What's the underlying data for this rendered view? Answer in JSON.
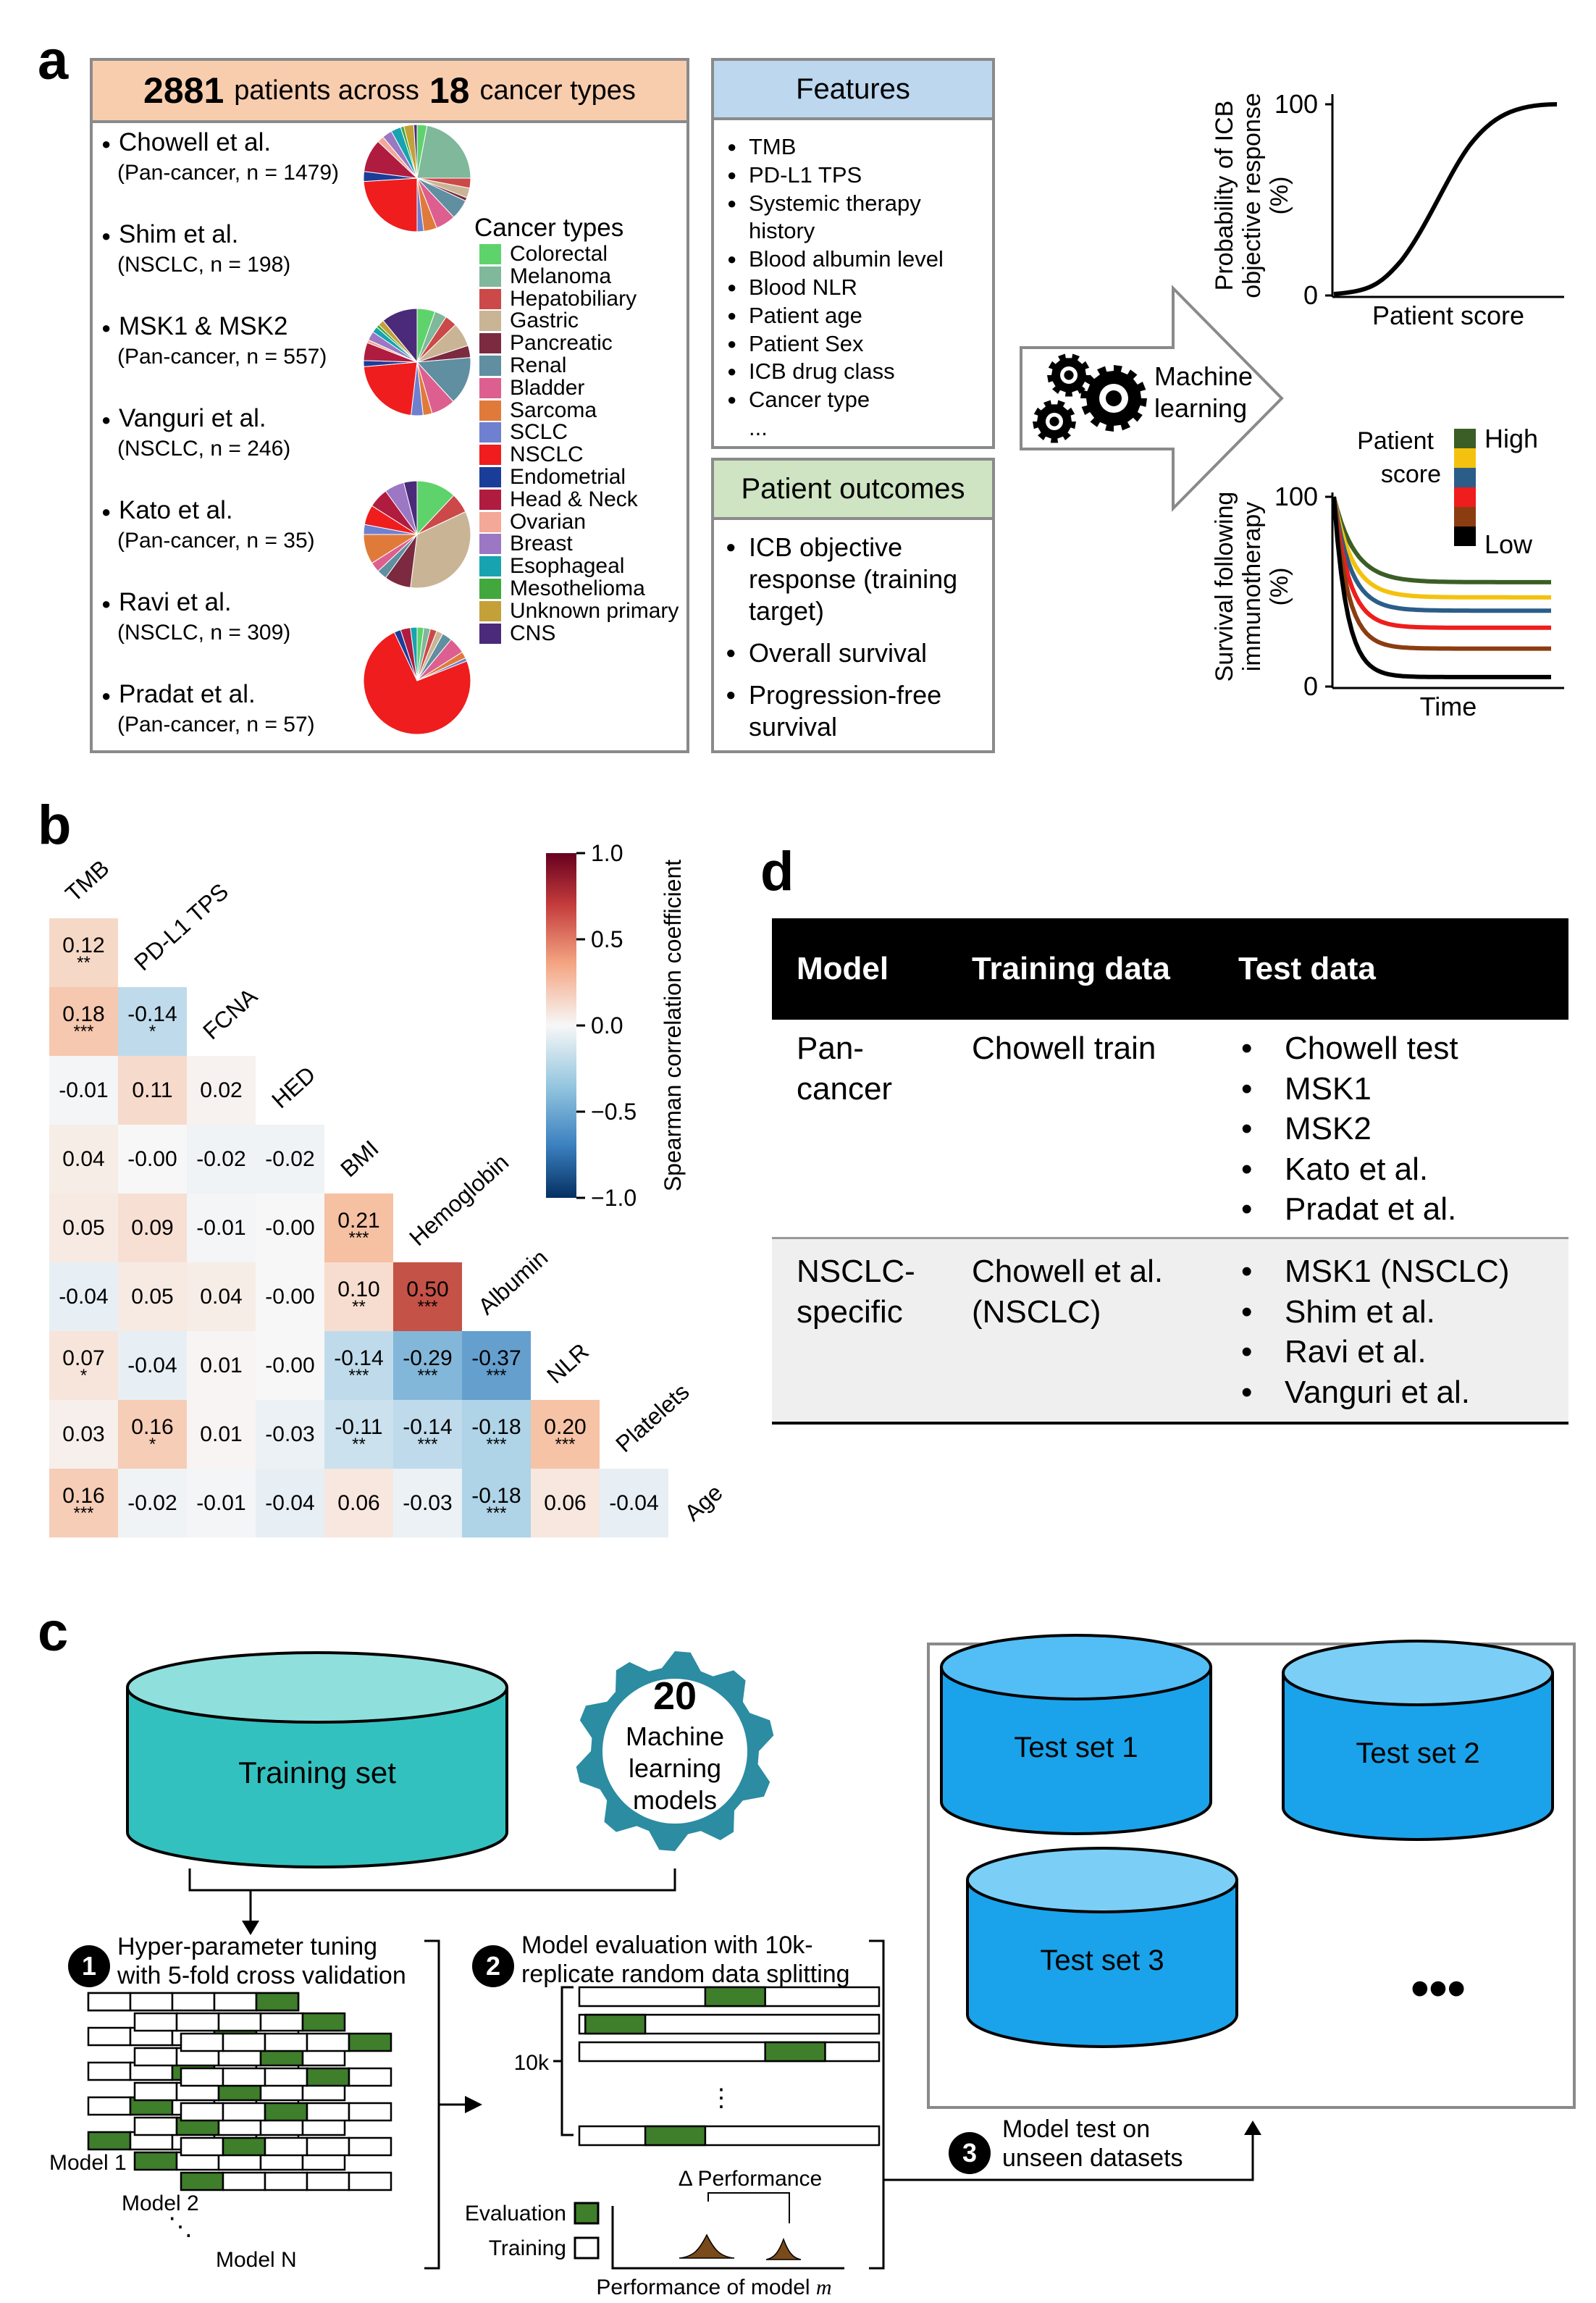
{
  "panel_a": {
    "letter": "a",
    "header": {
      "patients_num": "2881",
      "patients_mid": "patients across",
      "types_num": "18",
      "types_tail": "cancer types"
    },
    "studies": [
      {
        "name": "Chowell et al.",
        "detail": "(Pan-cancer, n = 1479)"
      },
      {
        "name": "Shim et al.",
        "detail": "(NSCLC, n = 198)"
      },
      {
        "name": "MSK1 & MSK2",
        "detail": "(Pan-cancer, n = 557)"
      },
      {
        "name": "Vanguri et al.",
        "detail": "(NSCLC, n = 246)"
      },
      {
        "name": "Kato et al.",
        "detail": "(Pan-cancer, n = 35)"
      },
      {
        "name": "Ravi et al.",
        "detail": "(NSCLC, n = 309)"
      },
      {
        "name": "Pradat et al.",
        "detail": "(Pan-cancer, n = 57)"
      }
    ],
    "legend_title": "Cancer types",
    "cancer_types": [
      {
        "label": "Colorectal",
        "color": "#5fd36b"
      },
      {
        "label": "Melanoma",
        "color": "#7fb89a"
      },
      {
        "label": "Hepatobiliary",
        "color": "#cc4949"
      },
      {
        "label": "Gastric",
        "color": "#c9b596"
      },
      {
        "label": "Pancreatic",
        "color": "#7b2a3f"
      },
      {
        "label": "Renal",
        "color": "#5f8fa0"
      },
      {
        "label": "Bladder",
        "color": "#dd5f8f"
      },
      {
        "label": "Sarcoma",
        "color": "#e07a3b"
      },
      {
        "label": "SCLC",
        "color": "#6e80cf"
      },
      {
        "label": "NSCLC",
        "color": "#ef1d1d"
      },
      {
        "label": "Endometrial",
        "color": "#1b3d9a"
      },
      {
        "label": "Head & Neck",
        "color": "#b01c3f"
      },
      {
        "label": "Ovarian",
        "color": "#f3a898"
      },
      {
        "label": "Breast",
        "color": "#9b77c4"
      },
      {
        "label": "Esophageal",
        "color": "#17a3b0"
      },
      {
        "label": "Mesothelioma",
        "color": "#42a83d"
      },
      {
        "label": "Unknown primary",
        "color": "#c4a038"
      },
      {
        "label": "CNS",
        "color": "#4a2a79"
      }
    ],
    "pies": [
      {
        "slices": [
          [
            "#5fd36b",
            3
          ],
          [
            "#7fb89a",
            22
          ],
          [
            "#cc4949",
            3
          ],
          [
            "#c9b596",
            3
          ],
          [
            "#7b2a3f",
            1
          ],
          [
            "#5f8fa0",
            6
          ],
          [
            "#dd5f8f",
            6
          ],
          [
            "#e07a3b",
            4
          ],
          [
            "#6e80cf",
            2
          ],
          [
            "#ef1d1d",
            24
          ],
          [
            "#1b3d9a",
            3
          ],
          [
            "#b01c3f",
            10
          ],
          [
            "#f3a898",
            2
          ],
          [
            "#9b77c4",
            3
          ],
          [
            "#17a3b0",
            3
          ],
          [
            "#42a83d",
            1
          ],
          [
            "#c4a038",
            3
          ],
          [
            "#4a2a79",
            1
          ]
        ]
      },
      {
        "slices": [
          [
            "#5fd36b",
            6
          ],
          [
            "#7fb89a",
            4
          ],
          [
            "#cc4949",
            4
          ],
          [
            "#c9b596",
            8
          ],
          [
            "#7b2a3f",
            4
          ],
          [
            "#5f8fa0",
            16
          ],
          [
            "#dd5f8f",
            8
          ],
          [
            "#e07a3b",
            3
          ],
          [
            "#6e80cf",
            4
          ],
          [
            "#ef1d1d",
            24
          ],
          [
            "#1b3d9a",
            2
          ],
          [
            "#b01c3f",
            6
          ],
          [
            "#f3a898",
            1
          ],
          [
            "#9b77c4",
            3
          ],
          [
            "#17a3b0",
            2
          ],
          [
            "#42a83d",
            1
          ],
          [
            "#c4a038",
            2
          ],
          [
            "#4a2a79",
            12
          ]
        ]
      },
      {
        "slices": [
          [
            "#5fd36b",
            12
          ],
          [
            "#7fb89a",
            0
          ],
          [
            "#cc4949",
            6
          ],
          [
            "#c9b596",
            34
          ],
          [
            "#7b2a3f",
            8
          ],
          [
            "#5f8fa0",
            3
          ],
          [
            "#dd5f8f",
            3
          ],
          [
            "#e07a3b",
            9
          ],
          [
            "#6e80cf",
            3
          ],
          [
            "#ef1d1d",
            6
          ],
          [
            "#1b3d9a",
            0
          ],
          [
            "#b01c3f",
            6
          ],
          [
            "#f3a898",
            0
          ],
          [
            "#9b77c4",
            6
          ],
          [
            "#17a3b0",
            0
          ],
          [
            "#42a83d",
            0
          ],
          [
            "#c4a038",
            0
          ],
          [
            "#4a2a79",
            4
          ]
        ]
      },
      {
        "slices": [
          [
            "#5fd36b",
            2
          ],
          [
            "#7fb89a",
            2
          ],
          [
            "#cc4949",
            2
          ],
          [
            "#c9b596",
            2
          ],
          [
            "#7b2a3f",
            0
          ],
          [
            "#5f8fa0",
            3
          ],
          [
            "#dd5f8f",
            5
          ],
          [
            "#e07a3b",
            2
          ],
          [
            "#6e80cf",
            1
          ],
          [
            "#ef1d1d",
            74
          ],
          [
            "#1b3d9a",
            2
          ],
          [
            "#b01c3f",
            3
          ],
          [
            "#f3a898",
            0
          ],
          [
            "#9b77c4",
            0
          ],
          [
            "#17a3b0",
            2
          ],
          [
            "#42a83d",
            0
          ],
          [
            "#c4a038",
            0
          ],
          [
            "#4a2a79",
            0
          ]
        ]
      }
    ],
    "features_title": "Features",
    "features": [
      "TMB",
      "PD-L1 TPS",
      "Systemic therapy",
      "history",
      "Blood albumin level",
      "Blood NLR",
      "Patient age",
      "Patient Sex",
      "ICB drug class",
      "Cancer type",
      "..."
    ],
    "outcomes_title": "Patient outcomes",
    "outcomes": [
      {
        "l1": "ICB objective",
        "l2": "response (training",
        "l3": "target)"
      },
      {
        "l1": "Overall survival",
        "l2": "",
        "l3": ""
      },
      {
        "l1": "Progression-free",
        "l2": "survival",
        "l3": ""
      }
    ],
    "ml_label_1": "Machine",
    "ml_label_2": "learning",
    "resp_plot": {
      "ylabel1": "Probability of ICB",
      "ylabel2": "objective response",
      "ylabel3": "(%)",
      "ytick_top": "100",
      "ytick_bottom": "0",
      "xlabel": "Patient score"
    },
    "surv_plot": {
      "ylabel1": "Survival following",
      "ylabel2": "immunotherapy",
      "ylabel3": "(%)",
      "ytick_top": "100",
      "ytick_bottom": "0",
      "xlabel": "Time",
      "legend_title_1": "Patient",
      "legend_title_2": "score",
      "high": "High",
      "low": "Low",
      "colors": [
        "#3b5e25",
        "#f4c20e",
        "#2b5d88",
        "#ef1d1d",
        "#8b3d11",
        "#000000"
      ]
    }
  },
  "panel_b": {
    "letter": "b",
    "variables": [
      "TMB",
      "PD-L1 TPS",
      "FCNA",
      "HED",
      "BMI",
      "Hemoglobin",
      "Albumin",
      "NLR",
      "Platelets",
      "Age"
    ],
    "cells": [
      [
        [
          "0.12",
          "**"
        ]
      ],
      [
        [
          "0.18",
          "***"
        ],
        [
          "-0.14",
          "*"
        ]
      ],
      [
        [
          "-0.01",
          ""
        ],
        [
          "0.11",
          ""
        ],
        [
          "0.02",
          ""
        ]
      ],
      [
        [
          "0.04",
          ""
        ],
        [
          "-0.00",
          ""
        ],
        [
          "-0.02",
          ""
        ],
        [
          "-0.02",
          ""
        ]
      ],
      [
        [
          "0.05",
          ""
        ],
        [
          "0.09",
          ""
        ],
        [
          "-0.01",
          ""
        ],
        [
          "-0.00",
          ""
        ],
        [
          "0.21",
          "***"
        ]
      ],
      [
        [
          "-0.04",
          ""
        ],
        [
          "0.05",
          ""
        ],
        [
          "0.04",
          ""
        ],
        [
          "-0.00",
          ""
        ],
        [
          "0.10",
          "**"
        ],
        [
          "0.50",
          "***"
        ]
      ],
      [
        [
          "0.07",
          "*"
        ],
        [
          "-0.04",
          ""
        ],
        [
          "0.01",
          ""
        ],
        [
          "-0.00",
          ""
        ],
        [
          "-0.14",
          "***"
        ],
        [
          "-0.29",
          "***"
        ],
        [
          "-0.37",
          "***"
        ]
      ],
      [
        [
          "0.03",
          ""
        ],
        [
          "0.16",
          "*"
        ],
        [
          "0.01",
          ""
        ],
        [
          "-0.03",
          ""
        ],
        [
          "-0.11",
          "**"
        ],
        [
          "-0.14",
          "***"
        ],
        [
          "-0.18",
          "***"
        ],
        [
          "0.20",
          "***"
        ]
      ],
      [
        [
          "0.16",
          "***"
        ],
        [
          "-0.02",
          ""
        ],
        [
          "-0.01",
          ""
        ],
        [
          "-0.04",
          ""
        ],
        [
          "0.06",
          ""
        ],
        [
          "-0.03",
          ""
        ],
        [
          "-0.18",
          "***"
        ],
        [
          "0.06",
          ""
        ],
        [
          "-0.04",
          ""
        ]
      ]
    ],
    "colorbar": {
      "label": "Spearman correlation coefficient",
      "ticks": [
        "1.0",
        "0.5",
        "0.0",
        "−0.5",
        "−1.0"
      ]
    }
  },
  "panel_c": {
    "letter": "c",
    "training_set": "Training set",
    "gear_number": "20",
    "gear_l1": "Machine",
    "gear_l2": "learning",
    "gear_l3": "models",
    "test_sets": [
      "Test set 1",
      "Test set 2",
      "Test set 3"
    ],
    "test_more": "•••",
    "step1_num": "1",
    "step1_l1": "Hyper-parameter tuning",
    "step1_l2": "with 5-fold cross validation",
    "step2_num": "2",
    "step2_l1": "Model evaluation with 10k-",
    "step2_l2": "replicate random data splitting",
    "step3_num": "3",
    "step3_l1": "Model test on",
    "step3_l2": "unseen datasets",
    "model1": "Model 1",
    "model2": "Model 2",
    "modelN": "Model N",
    "ten_k": "10k",
    "vdots": "⋮",
    "delta_perf": "Δ Performance",
    "legend_eval": "Evaluation",
    "legend_train": "Training",
    "perf_axis": "Performance of model",
    "perf_axis_m": "m",
    "green": "#3f7e2b",
    "teal": "#33c1bf",
    "blue": "#1aa3ea"
  },
  "panel_d": {
    "letter": "d",
    "headers": [
      "Model",
      "Training data",
      "Test data"
    ],
    "rows": [
      {
        "model_l1": "Pan-",
        "model_l2": "cancer",
        "train_l1": "Chowell train",
        "train_l2": "",
        "tests": [
          "Chowell test",
          "MSK1",
          "MSK2",
          "Kato et al.",
          "Pradat et al."
        ]
      },
      {
        "model_l1": "NSCLC-",
        "model_l2": "specific",
        "train_l1": "Chowell et al.",
        "train_l2": "(NSCLC)",
        "tests": [
          "MSK1 (NSCLC)",
          "Shim et al.",
          "Ravi et al.",
          "Vanguri et al."
        ]
      }
    ]
  }
}
